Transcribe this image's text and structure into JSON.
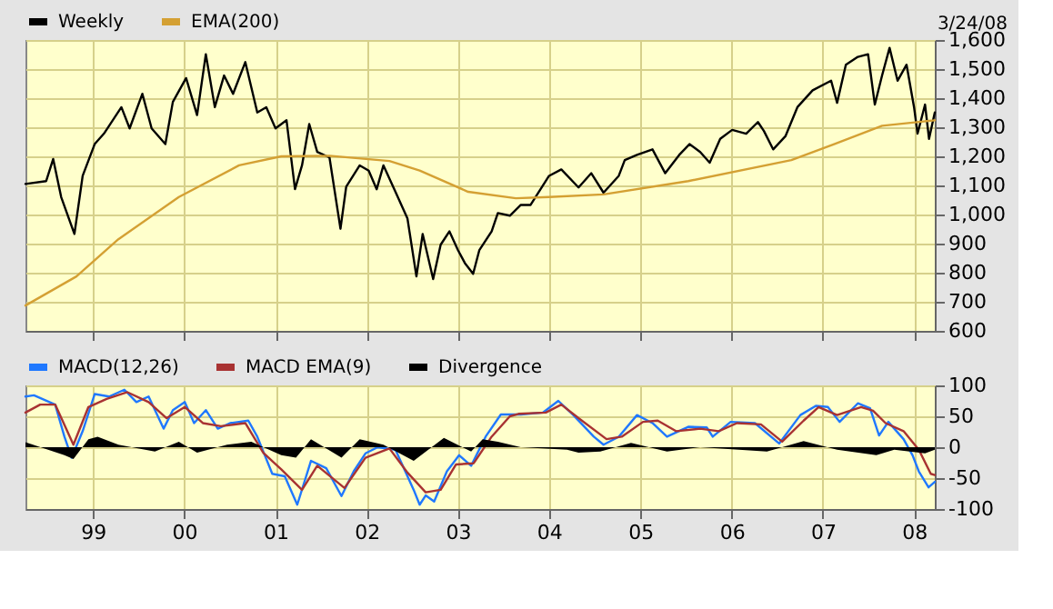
{
  "chart_data": [
    {
      "type": "line",
      "legend": "top left",
      "grid": true,
      "tick_labels": "y",
      "annotations": [
        "3/24/08"
      ],
      "xlim": [
        "1998-04-06",
        "2008-03-24"
      ],
      "xticks": [
        {
          "value": "1999",
          "label": null
        },
        {
          "value": "2000",
          "label": null
        },
        {
          "value": "2001",
          "label": null
        },
        {
          "value": "2002",
          "label": null
        },
        {
          "value": "2003",
          "label": null
        },
        {
          "value": "2004",
          "label": null
        },
        {
          "value": "2005",
          "label": null
        },
        {
          "value": "2006",
          "label": null
        },
        {
          "value": "2007",
          "label": null
        },
        {
          "value": "2008",
          "label": null
        }
      ],
      "ylim": [
        600,
        1600
      ],
      "yticks": [
        600,
        700,
        800,
        900,
        {
          "value": 1000,
          "label": "1,000"
        },
        {
          "value": 1100,
          "label": "1,100"
        },
        {
          "value": 1200,
          "label": "1,200"
        },
        {
          "value": 1300,
          "label": "1,300"
        },
        {
          "value": 1400,
          "label": "1,400"
        },
        {
          "value": 1500,
          "label": "1,500"
        },
        {
          "value": 1600,
          "label": "1,600"
        }
      ],
      "series": [
        {
          "name": "Weekly",
          "color": "#000000",
          "x": [
            "1998-04-06",
            "1998-06-28",
            "1998-07-26",
            "1998-08-27",
            "1998-10-19",
            "1998-11-21",
            "1999-01-08",
            "1999-02-14",
            "1999-04-25",
            "1999-05-28",
            "1999-07-18",
            "1999-08-24",
            "1999-10-18",
            "1999-11-17",
            "2000-01-09",
            "2000-02-22",
            "2000-03-28",
            "2000-05-03",
            "2000-06-09",
            "2000-07-15",
            "2000-09-02",
            "2000-10-20",
            "2000-11-25",
            "2001-01-01",
            "2001-02-14",
            "2001-03-20",
            "2001-04-17",
            "2001-05-16",
            "2001-06-17",
            "2001-08-05",
            "2001-09-18",
            "2001-10-11",
            "2001-12-04",
            "2002-01-09",
            "2002-02-10",
            "2002-03-09",
            "2002-04-26",
            "2002-06-13",
            "2002-07-19",
            "2002-08-13",
            "2002-09-24",
            "2002-10-24",
            "2002-11-28",
            "2003-01-01",
            "2003-01-29",
            "2003-03-03",
            "2003-03-28",
            "2003-05-16",
            "2003-06-10",
            "2003-07-28",
            "2003-09-10",
            "2003-10-19",
            "2004-01-01",
            "2004-02-19",
            "2004-04-28",
            "2004-06-18",
            "2004-08-06",
            "2004-10-06",
            "2004-10-30",
            "2004-12-18",
            "2005-02-18",
            "2005-04-10",
            "2005-06-05",
            "2005-07-16",
            "2005-08-28",
            "2005-10-05",
            "2005-11-16",
            "2006-01-03",
            "2006-02-28",
            "2006-04-16",
            "2006-05-10",
            "2006-06-16",
            "2006-08-04",
            "2006-09-21",
            "2006-11-21",
            "2007-02-03",
            "2007-02-27",
            "2007-04-03",
            "2007-05-21",
            "2007-07-01",
            "2007-07-28",
            "2007-08-26",
            "2007-09-25",
            "2007-10-27",
            "2007-12-02",
            "2008-01-01",
            "2008-01-15",
            "2008-02-14",
            "2008-03-01",
            "2008-03-24"
          ],
          "values": [
            1105,
            1115,
            1191,
            1060,
            933,
            1133,
            1242,
            1278,
            1369,
            1296,
            1415,
            1296,
            1242,
            1387,
            1469,
            1342,
            1551,
            1369,
            1478,
            1415,
            1524,
            1351,
            1369,
            1296,
            1324,
            1087,
            1169,
            1311,
            1215,
            1196,
            951,
            1096,
            1169,
            1151,
            1087,
            1169,
            1078,
            987,
            787,
            933,
            778,
            896,
            942,
            878,
            833,
            796,
            878,
            942,
            1005,
            996,
            1033,
            1033,
            1133,
            1155,
            1093,
            1142,
            1075,
            1133,
            1187,
            1205,
            1224,
            1142,
            1205,
            1242,
            1215,
            1178,
            1260,
            1291,
            1278,
            1318,
            1287,
            1224,
            1269,
            1369,
            1427,
            1460,
            1384,
            1515,
            1542,
            1551,
            1378,
            1478,
            1573,
            1460,
            1515,
            1369,
            1278,
            1378,
            1260,
            1351
          ]
        },
        {
          "name": "EMA(200)",
          "color": "#d4a033",
          "x": [
            "1998-04-06",
            "1998-10-27",
            "1999-04-13",
            "1999-12-11",
            "2000-08-08",
            "2001-01-24",
            "2001-08-05",
            "2002-04-02",
            "2002-08-01",
            "2003-02-11",
            "2003-08-21",
            "2004-01-01",
            "2004-08-06",
            "2005-07-11",
            "2006-08-28",
            "2007-02-15",
            "2007-08-26",
            "2008-03-24"
          ],
          "values": [
            687,
            787,
            915,
            1060,
            1169,
            1200,
            1202,
            1184,
            1151,
            1078,
            1056,
            1060,
            1069,
            1115,
            1187,
            1242,
            1305,
            1324
          ]
        }
      ]
    },
    {
      "type": "line",
      "legend": "top left",
      "grid": true,
      "xlim": [
        "1998-04-06",
        "2008-03-24"
      ],
      "xticks": [
        {
          "value": "1999",
          "label": "99"
        },
        {
          "value": "2000",
          "label": "00"
        },
        {
          "value": "2001",
          "label": "01"
        },
        {
          "value": "2002",
          "label": "02"
        },
        {
          "value": "2003",
          "label": "03"
        },
        {
          "value": "2004",
          "label": "04"
        },
        {
          "value": "2005",
          "label": "05"
        },
        {
          "value": "2006",
          "label": "06"
        },
        {
          "value": "2007",
          "label": "07"
        },
        {
          "value": "2008",
          "label": "08"
        }
      ],
      "ylim": [
        -100,
        100
      ],
      "yticks": [
        -100,
        -50,
        0,
        50,
        100
      ],
      "series": [
        {
          "name": "MACD(12,26)",
          "color": "#1f78ff",
          "x": [
            "1998-04-06",
            "1998-05-10",
            "1998-08-03",
            "1998-09-09",
            "1998-10-08",
            "1998-11-21",
            "1999-01-08",
            "1999-03-07",
            "1999-05-07",
            "1999-06-24",
            "1999-08-12",
            "1999-10-11",
            "1999-11-17",
            "2000-01-04",
            "2000-02-10",
            "2000-03-28",
            "2000-05-15",
            "2000-07-03",
            "2000-09-14",
            "2000-10-20",
            "2000-12-19",
            "2001-02-07",
            "2001-03-29",
            "2001-05-23",
            "2001-07-23",
            "2001-09-22",
            "2001-11-10",
            "2001-12-27",
            "2002-02-14",
            "2002-04-26",
            "2002-07-08",
            "2002-08-01",
            "2002-08-25",
            "2002-09-28",
            "2002-11-18",
            "2003-01-06",
            "2003-02-23",
            "2003-04-22",
            "2003-06-22",
            "2003-09-10",
            "2003-12-07",
            "2004-02-07",
            "2004-04-07",
            "2004-06-28",
            "2004-08-06",
            "2004-10-06",
            "2004-12-18",
            "2005-02-18",
            "2005-04-17",
            "2005-07-11",
            "2005-09-23",
            "2005-10-17",
            "2005-12-28",
            "2006-04-04",
            "2006-07-10",
            "2006-10-03",
            "2006-12-04",
            "2007-01-21",
            "2007-03-09",
            "2007-05-21",
            "2007-07-09",
            "2007-08-14",
            "2007-09-20",
            "2007-11-20",
            "2007-12-26",
            "2008-01-20",
            "2008-02-28",
            "2008-03-24"
          ],
          "values": [
            82,
            84,
            69,
            17,
            -17,
            26,
            86,
            82,
            93,
            73,
            82,
            30,
            60,
            73,
            39,
            60,
            30,
            39,
            43,
            17,
            -43,
            -47,
            -93,
            -22,
            -34,
            -79,
            -39,
            -10,
            0,
            -4,
            -69,
            -93,
            -78,
            -88,
            -39,
            -13,
            -30,
            17,
            53,
            53,
            56,
            75,
            52,
            17,
            4,
            17,
            52,
            39,
            17,
            33,
            32,
            17,
            41,
            39,
            6,
            52,
            67,
            65,
            41,
            71,
            63,
            19,
            41,
            13,
            -13,
            -39,
            -65,
            -56
          ]
        },
        {
          "name": "MACD EMA(9)",
          "color": "#a83232",
          "x": [
            "1998-04-06",
            "1998-06-04",
            "1998-08-03",
            "1998-10-15",
            "1998-12-14",
            "1999-02-25",
            "1999-05-19",
            "1999-08-12",
            "1999-10-23",
            "2000-01-04",
            "2000-03-16",
            "2000-05-27",
            "2000-09-02",
            "2000-11-13",
            "2001-01-24",
            "2001-04-17",
            "2001-06-17",
            "2001-10-04",
            "2001-12-27",
            "2002-04-02",
            "2002-06-13",
            "2002-08-25",
            "2002-10-24",
            "2002-12-24",
            "2003-03-05",
            "2003-05-16",
            "2003-07-28",
            "2003-09-01",
            "2003-12-19",
            "2004-02-19",
            "2004-04-28",
            "2004-08-18",
            "2004-10-18",
            "2005-01-11",
            "2005-03-11",
            "2005-05-23",
            "2005-08-28",
            "2005-11-10",
            "2006-01-22",
            "2006-04-28",
            "2006-07-22",
            "2006-10-16",
            "2006-12-15",
            "2007-02-27",
            "2007-06-03",
            "2007-07-21",
            "2007-09-09",
            "2007-11-20",
            "2008-01-20",
            "2008-03-08",
            "2008-03-24"
          ],
          "values": [
            56,
            69,
            69,
            4,
            65,
            78,
            89,
            73,
            47,
            65,
            39,
            34,
            39,
            -9,
            -36,
            -69,
            -30,
            -66,
            -17,
            -2,
            -41,
            -73,
            -69,
            -28,
            -26,
            17,
            50,
            54,
            56,
            69,
            47,
            13,
            17,
            41,
            43,
            26,
            30,
            26,
            39,
            37,
            9,
            43,
            65,
            52,
            65,
            59,
            39,
            26,
            -4,
            -43,
            -45
          ]
        },
        {
          "name": "Divergence",
          "color": "#000000",
          "type": "area",
          "x": [
            "1998-04-06",
            "1998-09-09",
            "1998-10-15",
            "1998-12-14",
            "1999-01-20",
            "1999-04-13",
            "1999-09-06",
            "1999-12-11",
            "2000-02-22",
            "2000-06-21",
            "2000-09-26",
            "2001-01-24",
            "2001-03-24",
            "2001-05-23",
            "2001-09-22",
            "2001-12-04",
            "2002-03-09",
            "2002-07-08",
            "2002-11-06",
            "2003-02-23",
            "2003-04-10",
            "2003-06-10",
            "2003-09-10",
            "2004-03-13",
            "2004-04-28",
            "2004-07-24",
            "2004-11-24",
            "2005-04-17",
            "2005-08-28",
            "2006-05-22",
            "2006-10-16",
            "2007-02-27",
            "2007-08-03",
            "2007-10-14",
            "2008-02-14",
            "2008-03-24"
          ],
          "values": [
            8,
            -13,
            -19,
            13,
            17,
            4,
            -7,
            9,
            -9,
            4,
            9,
            -13,
            -17,
            13,
            -17,
            13,
            4,
            -22,
            15,
            -7,
            13,
            9,
            0,
            -4,
            -9,
            -7,
            7,
            -7,
            0,
            -7,
            10,
            -4,
            -13,
            -4,
            -10,
            -4
          ]
        }
      ]
    }
  ]
}
